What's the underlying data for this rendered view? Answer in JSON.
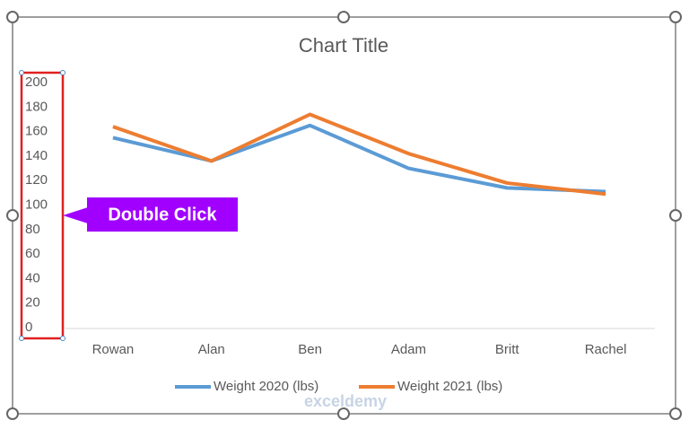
{
  "chart_data": {
    "type": "line",
    "title": "Chart Title",
    "categories": [
      "Rowan",
      "Alan",
      "Ben",
      "Adam",
      "Britt",
      "Rachel"
    ],
    "series": [
      {
        "name": "Weight 2020 (lbs)",
        "color": "#5b9bd5",
        "values": [
          155,
          136,
          165,
          130,
          114,
          111
        ]
      },
      {
        "name": "Weight 2021 (lbs)",
        "color": "#ed7d31",
        "values": [
          164,
          136,
          174,
          142,
          118,
          109
        ]
      }
    ],
    "ylim": [
      0,
      200
    ],
    "yticks": [
      0,
      20,
      40,
      60,
      80,
      100,
      120,
      140,
      160,
      180,
      200
    ],
    "grid": false,
    "legend": "bottom",
    "annotation": "Double Click",
    "watermark": "exceldemy"
  }
}
